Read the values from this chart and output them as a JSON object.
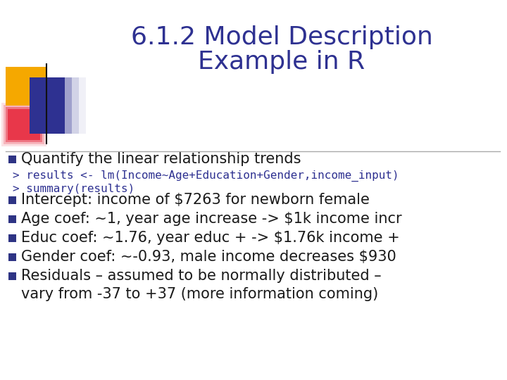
{
  "title_line1": "6.1.2 Model Description",
  "title_line2": "Example in R",
  "title_color": "#2E3191",
  "title_fontsize": 26,
  "bg_color": "#FFFFFF",
  "bullet1": "Quantify the linear relationship trends",
  "code_line1": "> results <- lm(Income~Age+Education+Gender,income_input)",
  "code_line2": "> summary(results)",
  "code_color": "#2E3191",
  "bullet_color": "#1a1a1a",
  "bullet_items": [
    "Intercept: income of $7263 for newborn female",
    "Age coef: ~1, year age increase -> $1k income incr",
    "Educ coef: ~1.76, year educ + -> $1.76k income +",
    "Gender coef: ~-0.93, male income decreases $930",
    "Residuals – assumed to be normally distributed –",
    "vary from -37 to +37 (more information coming)"
  ],
  "square_gold": "#F5A800",
  "square_blue": "#2E3191",
  "square_red": "#E8374A",
  "divider_color": "#2E3191",
  "bullet_square_color": "#2E3484",
  "body_fontsize": 15,
  "code_fontsize": 11.5
}
